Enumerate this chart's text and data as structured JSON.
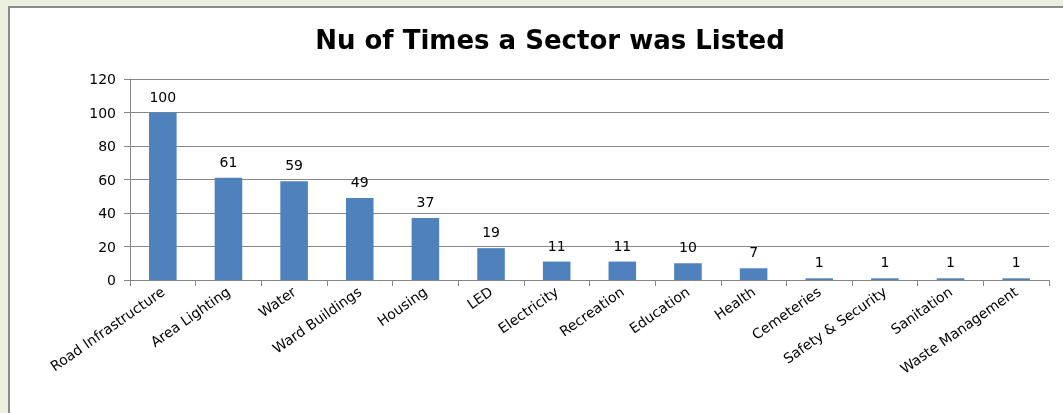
{
  "chart_data": {
    "type": "bar",
    "title": "Nu of Times a Sector was Listed",
    "categories": [
      "Road Infrastructure",
      "Area Lighting",
      "Water",
      "Ward Buildings",
      "Housing",
      "LED",
      "Electricity",
      "Recreation",
      "Education",
      "Health",
      "Cemeteries",
      "Safety & Security",
      "Sanitation",
      "Waste Management"
    ],
    "values": [
      100,
      61,
      59,
      49,
      37,
      19,
      11,
      11,
      10,
      7,
      1,
      1,
      1,
      1
    ],
    "color": "#4f81bd",
    "ylim": [
      0,
      120
    ],
    "yticks": [
      0,
      20,
      40,
      60,
      80,
      100,
      120
    ],
    "grid": "y",
    "data_labels": true
  }
}
